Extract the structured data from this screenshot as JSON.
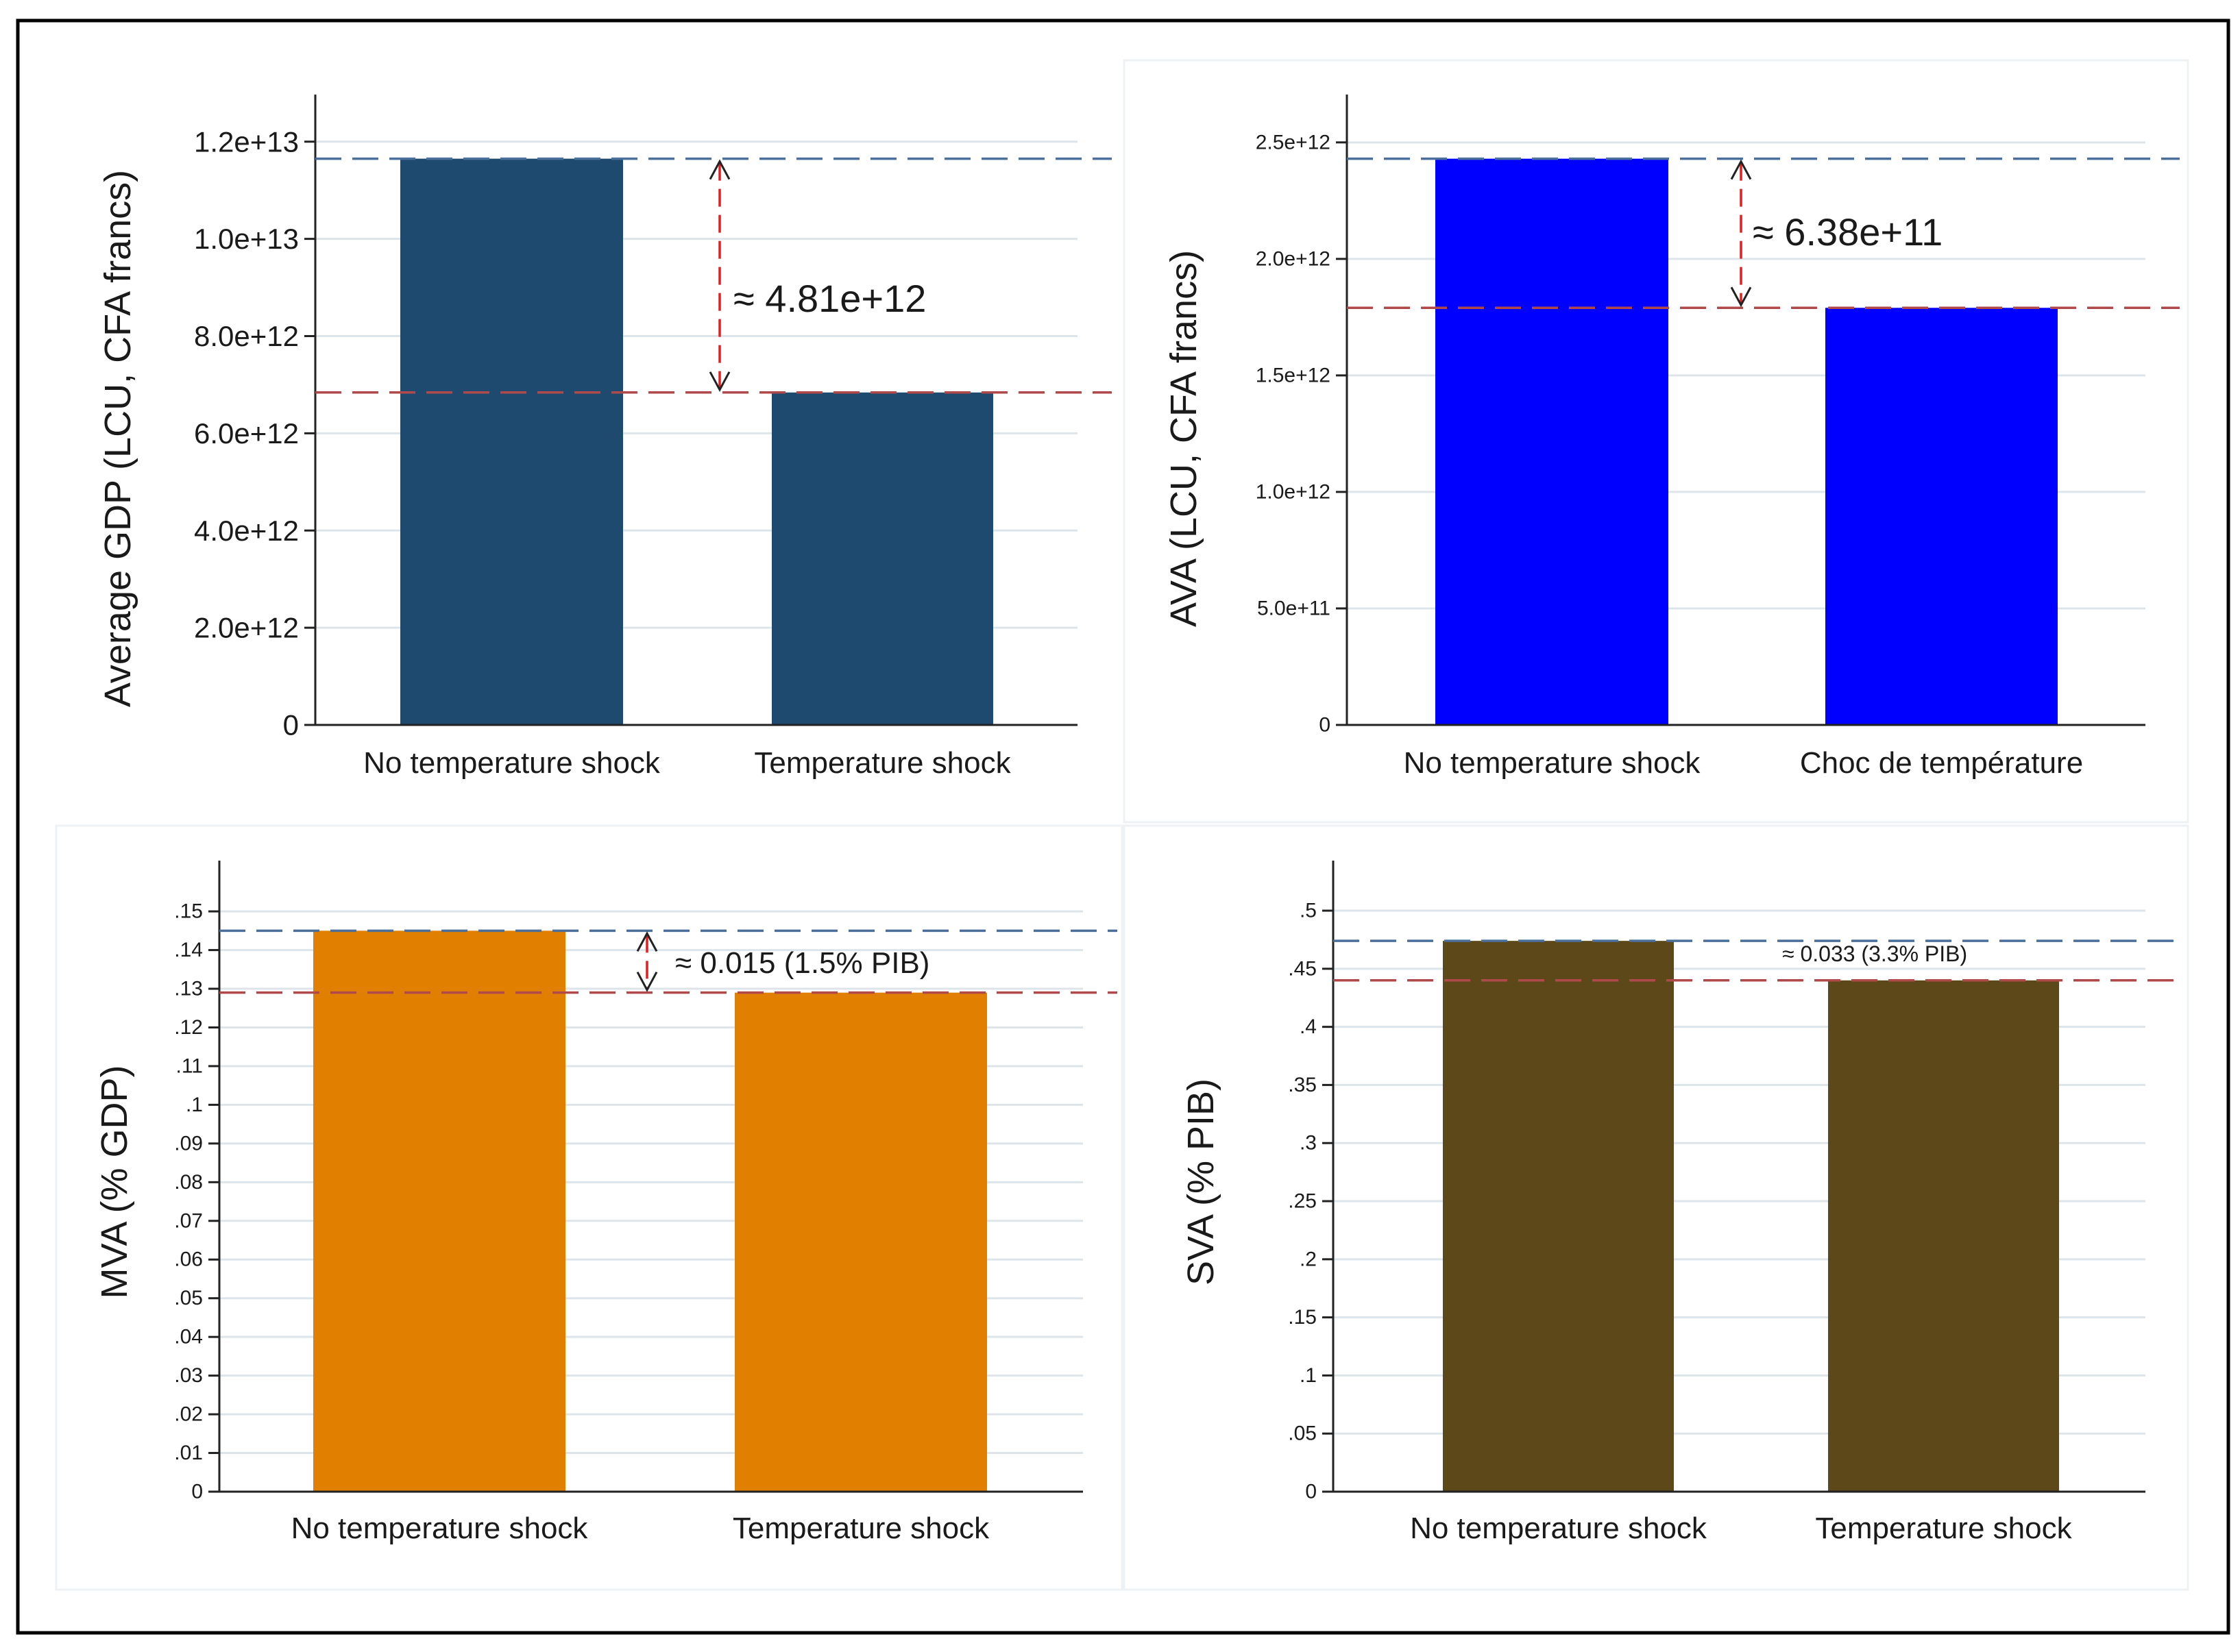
{
  "chart_data": [
    {
      "type": "bar",
      "categories": [
        "No temperature shock",
        "Temperature shock"
      ],
      "values": [
        11650000000000,
        6840000000000
      ],
      "ylabel": "Average GDP (LCU, CFA francs)",
      "ylim": [
        0,
        12800000000000
      ],
      "yticks": [
        0,
        2000000000000,
        4000000000000,
        6000000000000,
        8000000000000,
        10000000000000,
        12000000000000
      ],
      "yticklabels": [
        "0",
        "2.0e+12",
        "4.0e+12",
        "6.0e+12",
        "8.0e+12",
        "1.0e+13",
        "1.2e+13"
      ],
      "bar_color": "#1d4a6e",
      "grid": true,
      "annotation": "≈ 4.81e+12"
    },
    {
      "type": "bar",
      "categories": [
        "No temperature shock",
        "Choc de température"
      ],
      "values": [
        2430000000000,
        1790000000000
      ],
      "ylabel": "AVA (LCU, CFA francs)",
      "ylim": [
        0,
        2670000000000
      ],
      "yticks": [
        0,
        500000000000,
        1000000000000,
        1500000000000,
        2000000000000,
        2500000000000
      ],
      "yticklabels": [
        "0",
        "5.0e+11",
        "1.0e+12",
        "1.5e+12",
        "2.0e+12",
        "2.5e+12"
      ],
      "bar_color": "#0000ff",
      "grid": true,
      "annotation": "≈ 6.38e+11"
    },
    {
      "type": "bar",
      "categories": [
        "No temperature shock",
        "Temperature shock"
      ],
      "values": [
        0.145,
        0.129
      ],
      "ylabel": "MVA (% GDP)",
      "ylim": [
        0,
        0.161
      ],
      "yticks": [
        0,
        0.01,
        0.02,
        0.03,
        0.04,
        0.05,
        0.06,
        0.07,
        0.08,
        0.09,
        0.1,
        0.11,
        0.12,
        0.13,
        0.14,
        0.15
      ],
      "yticklabels": [
        "0",
        ".01",
        ".02",
        ".03",
        ".04",
        ".05",
        ".06",
        ".07",
        ".08",
        ".09",
        ".1",
        ".11",
        ".12",
        ".13",
        ".14",
        ".15"
      ],
      "bar_color": "#e07f00",
      "grid": true,
      "annotation": "≈ 0.015 (1.5% PIB)"
    },
    {
      "type": "bar",
      "categories": [
        "No temperature shock",
        "Temperature shock"
      ],
      "values": [
        0.474,
        0.44
      ],
      "ylabel": "SVA (% PIB)",
      "ylim": [
        0,
        0.536
      ],
      "yticks": [
        0,
        0.05,
        0.1,
        0.15,
        0.2,
        0.25,
        0.3,
        0.35,
        0.4,
        0.45,
        0.5
      ],
      "yticklabels": [
        "0",
        ".05",
        ".1",
        ".15",
        ".2",
        ".25",
        ".3",
        ".35",
        ".4",
        ".45",
        ".5"
      ],
      "bar_color": "#5c4818",
      "grid": true,
      "annotation": "≈ 0.033 (3.3% PIB)"
    }
  ],
  "colors": {
    "reference_line_high": "#4a6f9a",
    "reference_line_low": "#b04a4a",
    "gap_arrow": "#e02020",
    "gridline": "#dde5ea",
    "frame": "#000000"
  }
}
